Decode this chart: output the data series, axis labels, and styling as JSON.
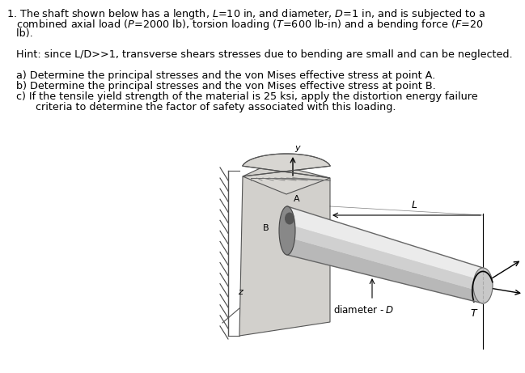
{
  "background_color": "#ffffff",
  "text_line1": "1. The shaft shown below has a length, ",
  "text_line1b": "L",
  "text_line1c": "=10 in, and diameter, ",
  "text_line1d": "D",
  "text_line1e": "=1 in, and is subjected to a",
  "text_line2": "   combined axial load (",
  "text_hint": "Hint: since L/D>>1, transverse shears stresses due to bending are small and can be neglected.",
  "text_a": "a) Determine the principal stresses and the von Mises effective stress at point A.",
  "text_b": "b) Determine the principal stresses and the von Mises effective stress at point B.",
  "text_c1": "c) If the tensile yield strength of the material is 25 ksi, apply the distortion energy failure",
  "text_c2": "      criteria to determine the factor of safety associated with this loading.",
  "fontsize_main": 9.2,
  "diagram_bg": "#f5f5f5"
}
